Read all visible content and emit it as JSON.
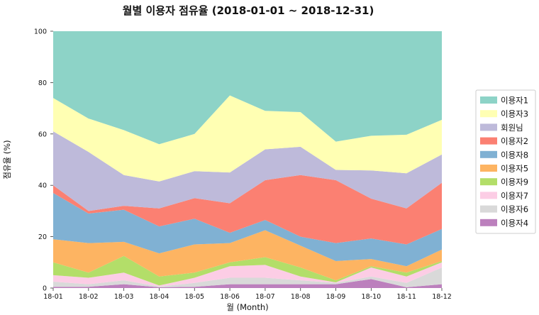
{
  "chart_data": {
    "type": "area",
    "stacked": true,
    "title": "월별 이용자 점유율 (2018-01-01  ~ 2018-12-31)",
    "xlabel": "월 (Month)",
    "ylabel": "점유율 (%)",
    "ylim": [
      0,
      100
    ],
    "yticks": [
      0,
      20,
      40,
      60,
      80,
      100
    ],
    "grid": false,
    "legend_position": "right",
    "categories": [
      "18-01",
      "18-02",
      "18-03",
      "18-04",
      "18-05",
      "18-06",
      "18-07",
      "18-08",
      "18-09",
      "18-10",
      "18-11",
      "18-12"
    ],
    "series": [
      {
        "name": "이용자4",
        "color": "#bc80bd",
        "values": [
          0.5,
          0.5,
          1.5,
          0.3,
          0.5,
          1.5,
          1.5,
          1.5,
          1.5,
          3.5,
          0.3,
          1.5
        ]
      },
      {
        "name": "이용자6",
        "color": "#d9d9d9",
        "values": [
          2.0,
          1.0,
          1.5,
          0.3,
          1.5,
          2.5,
          2.5,
          1.5,
          0.5,
          1.0,
          1.7,
          6.5
        ]
      },
      {
        "name": "이용자7",
        "color": "#fccde5",
        "values": [
          2.5,
          2.5,
          3.0,
          0.4,
          2.0,
          4.5,
          5.0,
          1.5,
          0.2,
          3.5,
          2.5,
          2.0
        ]
      },
      {
        "name": "이용자9",
        "color": "#b3de69",
        "values": [
          5.0,
          2.0,
          6.5,
          3.5,
          2.0,
          1.5,
          3.0,
          3.5,
          0.8,
          0.5,
          1.5,
          0.5
        ]
      },
      {
        "name": "이용자5",
        "color": "#fdb462",
        "values": [
          9.0,
          11.5,
          5.5,
          9.0,
          11.0,
          7.5,
          10.5,
          8.5,
          7.5,
          2.8,
          2.5,
          4.5
        ]
      },
      {
        "name": "이용자8",
        "color": "#80b1d3",
        "values": [
          18.0,
          11.5,
          12.5,
          10.5,
          10.0,
          4.0,
          4.0,
          3.5,
          7.0,
          8.0,
          8.5,
          8.0
        ]
      },
      {
        "name": "이용자2",
        "color": "#fb8072",
        "values": [
          3.0,
          1.0,
          1.5,
          7.0,
          8.0,
          11.5,
          15.5,
          24.0,
          24.5,
          15.5,
          14.0,
          18.0
        ]
      },
      {
        "name": "회원님",
        "color": "#bebada",
        "values": [
          21.0,
          23.0,
          12.0,
          10.5,
          10.5,
          12.0,
          12.0,
          11.0,
          4.0,
          11.0,
          13.7,
          11.0
        ]
      },
      {
        "name": "이용자3",
        "color": "#ffffb3",
        "values": [
          13.0,
          13.0,
          17.5,
          14.5,
          14.5,
          30.0,
          15.0,
          13.5,
          11.0,
          13.5,
          15.0,
          13.5
        ]
      },
      {
        "name": "이용자1",
        "color": "#8dd3c7",
        "values": [
          26.0,
          34.0,
          38.5,
          44.0,
          40.0,
          25.0,
          31.0,
          31.5,
          43.0,
          40.7,
          40.3,
          34.5
        ]
      }
    ],
    "legend_order": [
      "이용자1",
      "이용자3",
      "회원님",
      "이용자2",
      "이용자8",
      "이용자5",
      "이용자9",
      "이용자7",
      "이용자6",
      "이용자4"
    ]
  }
}
